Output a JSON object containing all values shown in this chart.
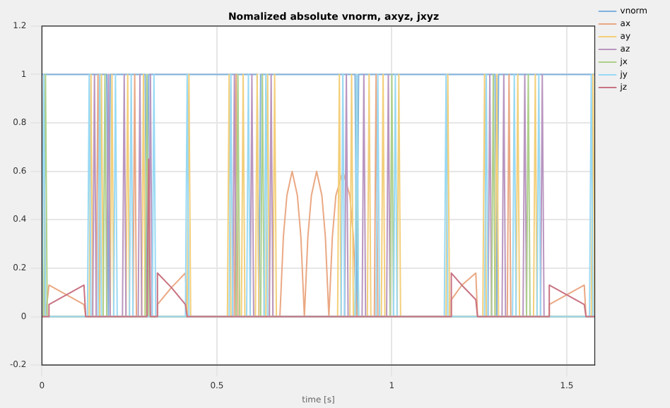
{
  "chart_data": {
    "type": "line",
    "title": "Nomalized absolute vnorm, axyz, jxyz",
    "xlabel": "time [s]",
    "xlim": [
      0,
      1.58
    ],
    "ylim": [
      -0.2,
      1.2
    ],
    "xticks": [
      0,
      0.5,
      1,
      1.5
    ],
    "yticks": [
      -0.2,
      0,
      0.2,
      0.4,
      0.6,
      0.8,
      1,
      1.2
    ],
    "grid": true,
    "legend": "right",
    "marker": "none",
    "line_style": "solid",
    "series": [
      {
        "name": "vnorm",
        "color": "#7fb2dd",
        "x": [
          0,
          0.185,
          0.19,
          0.195,
          0.295,
          0.3,
          0.305,
          0.615,
          0.62,
          0.625,
          0.895,
          0.9,
          0.905,
          1.295,
          1.3,
          1.305,
          1.58
        ],
        "values": [
          1,
          1,
          0,
          1,
          1,
          0,
          1,
          1,
          0,
          1,
          1,
          0,
          1,
          1,
          0,
          1,
          1
        ]
      },
      {
        "name": "ax",
        "color": "#eaa883",
        "x": [
          0,
          0.005,
          0.01,
          0.02,
          0.07,
          0.12,
          0.125,
          0.155,
          0.16,
          0.165,
          0.26,
          0.265,
          0.27,
          0.33,
          0.33,
          0.37,
          0.41,
          0.415,
          0.55,
          0.555,
          0.56,
          0.68,
          0.69,
          0.7,
          0.715,
          0.73,
          0.74,
          0.75,
          0.76,
          0.77,
          0.785,
          0.8,
          0.81,
          0.82,
          0.83,
          0.84,
          0.86,
          0.88,
          0.89,
          0.9,
          0.95,
          0.955,
          0.96,
          1.17,
          1.17,
          1.2,
          1.24,
          1.245,
          1.33,
          1.335,
          1.34,
          1.45,
          1.45,
          1.5,
          1.55,
          1.555,
          1.58
        ],
        "values": [
          0,
          1,
          0,
          0.13,
          0.09,
          0.05,
          0,
          0,
          1,
          0,
          0,
          1,
          0,
          0,
          0.05,
          0.12,
          0.18,
          0,
          0,
          1,
          0,
          0,
          0.33,
          0.5,
          0.6,
          0.5,
          0.33,
          0,
          0.33,
          0.5,
          0.6,
          0.5,
          0.33,
          0,
          0.33,
          0.5,
          0.6,
          0.5,
          0.33,
          0,
          0,
          1,
          0,
          0,
          0.07,
          0.13,
          0.18,
          0,
          0,
          1,
          0,
          0,
          0.05,
          0.09,
          0.13,
          0,
          0
        ]
      },
      {
        "name": "ay",
        "color": "#f3cf7a",
        "x": [
          0,
          0.135,
          0.14,
          0.145,
          0.165,
          0.17,
          0.175,
          0.195,
          0.2,
          0.205,
          0.24,
          0.245,
          0.25,
          0.285,
          0.29,
          0.295,
          0.415,
          0.42,
          0.425,
          0.53,
          0.535,
          0.54,
          0.57,
          0.575,
          0.58,
          0.61,
          0.615,
          0.62,
          0.64,
          0.645,
          0.65,
          0.66,
          0.665,
          0.67,
          0.845,
          0.85,
          0.855,
          0.88,
          0.885,
          0.89,
          0.93,
          0.935,
          0.94,
          0.97,
          0.975,
          0.98,
          1.015,
          1.02,
          1.025,
          1.155,
          1.16,
          1.165,
          1.26,
          1.265,
          1.27,
          1.295,
          1.3,
          1.305,
          1.355,
          1.36,
          1.365,
          1.405,
          1.41,
          1.415,
          1.57,
          1.575,
          1.58
        ],
        "values": [
          0,
          0,
          1,
          0,
          0,
          1,
          0,
          0,
          1,
          0,
          0,
          1,
          0,
          0,
          1,
          0,
          0,
          1,
          0,
          0,
          1,
          0,
          0,
          1,
          0,
          0,
          1,
          0,
          0,
          1,
          0,
          0,
          1,
          0,
          0,
          1,
          0,
          0,
          1,
          0,
          0,
          1,
          0,
          0,
          1,
          0,
          0,
          1,
          0,
          0,
          1,
          0,
          0,
          1,
          0,
          0,
          1,
          0,
          0,
          1,
          0,
          0,
          1,
          0,
          0,
          1,
          0
        ]
      },
      {
        "name": "az",
        "color": "#b996c0",
        "x": [
          0,
          0.145,
          0.15,
          0.155,
          0.185,
          0.19,
          0.195,
          0.23,
          0.235,
          0.24,
          0.275,
          0.28,
          0.285,
          0.305,
          0.31,
          0.315,
          0.545,
          0.55,
          0.555,
          0.595,
          0.6,
          0.605,
          0.65,
          0.655,
          0.66,
          0.865,
          0.87,
          0.875,
          0.915,
          0.92,
          0.925,
          0.985,
          0.99,
          0.995,
          1.275,
          1.28,
          1.285,
          1.315,
          1.32,
          1.325,
          1.375,
          1.38,
          1.385,
          1.425,
          1.43,
          1.435,
          1.58
        ],
        "values": [
          0,
          0,
          1,
          0,
          0,
          1,
          0,
          0,
          1,
          0,
          0,
          1,
          0,
          0,
          1,
          0,
          0,
          1,
          0,
          0,
          1,
          0,
          0,
          1,
          0,
          0,
          1,
          0,
          0,
          1,
          0,
          0,
          1,
          0,
          0,
          1,
          0,
          0,
          1,
          0,
          0,
          1,
          0,
          0,
          1,
          0,
          0
        ]
      },
      {
        "name": "jx",
        "color": "#aed08a",
        "x": [
          0,
          0.005,
          0.01,
          0.015,
          0.175,
          0.18,
          0.185,
          0.295,
          0.3,
          0.305,
          0.555,
          0.56,
          0.565,
          0.625,
          0.63,
          0.635,
          0.895,
          0.9,
          0.905,
          0.995,
          1,
          1.005,
          1.285,
          1.29,
          1.295,
          1.385,
          1.39,
          1.395,
          1.58
        ],
        "values": [
          0,
          0,
          1,
          0,
          0,
          1,
          0,
          0,
          1,
          0,
          0,
          1,
          0,
          0,
          1,
          0,
          0,
          1,
          0,
          0,
          1,
          0,
          0,
          1,
          0,
          0,
          1,
          0,
          0
        ]
      },
      {
        "name": "jy",
        "color": "#99d9f4",
        "x": [
          0,
          0.005,
          0.01,
          0.13,
          0.135,
          0.14,
          0.16,
          0.165,
          0.17,
          0.205,
          0.21,
          0.215,
          0.25,
          0.255,
          0.26,
          0.315,
          0.32,
          0.325,
          0.41,
          0.415,
          0.42,
          0.535,
          0.54,
          0.545,
          0.585,
          0.59,
          0.595,
          0.635,
          0.64,
          0.645,
          0.855,
          0.86,
          0.865,
          0.895,
          0.9,
          0.905,
          0.955,
          0.96,
          0.965,
          1.005,
          1.01,
          1.015,
          1.15,
          1.155,
          1.16,
          1.265,
          1.27,
          1.275,
          1.345,
          1.35,
          1.355,
          1.415,
          1.42,
          1.425,
          1.565,
          1.57,
          1.575,
          1.58
        ],
        "values": [
          0,
          1,
          0,
          0,
          1,
          0,
          0,
          1,
          0,
          0,
          1,
          0,
          0,
          1,
          0,
          0,
          1,
          0,
          0,
          1,
          0,
          0,
          1,
          0,
          0,
          1,
          0,
          0,
          1,
          0,
          0,
          1,
          0,
          0,
          1,
          0,
          0,
          1,
          0,
          0,
          1,
          0,
          0,
          1,
          0,
          0,
          1,
          0,
          0,
          1,
          0,
          0,
          1,
          0,
          0,
          1,
          0,
          0
        ]
      },
      {
        "name": "jz",
        "color": "#c97382",
        "x": [
          0,
          0.02,
          0.02,
          0.07,
          0.12,
          0.125,
          0.3,
          0.305,
          0.31,
          0.33,
          0.33,
          0.37,
          0.41,
          0.415,
          1.17,
          1.17,
          1.2,
          1.24,
          1.245,
          1.45,
          1.45,
          1.5,
          1.55,
          1.555,
          1.58
        ],
        "values": [
          0,
          0,
          0.05,
          0.09,
          0.13,
          0,
          0,
          0.65,
          0,
          0,
          0.18,
          0.12,
          0.05,
          0,
          0,
          0.18,
          0.13,
          0.07,
          0,
          0,
          0.13,
          0.09,
          0.05,
          0,
          0
        ]
      }
    ]
  }
}
